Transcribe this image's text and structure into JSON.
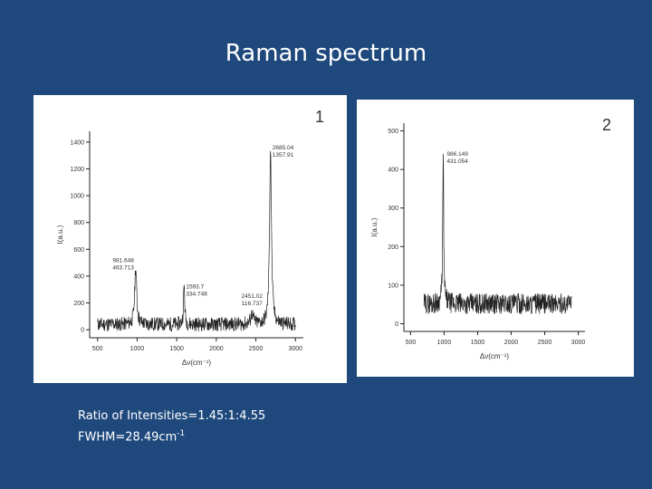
{
  "slide": {
    "title": "Raman spectrum",
    "ratio_text": "Ratio of  Intensities=1.45:1:4.55",
    "fwhm_text": "FWHM=28.49cm",
    "fwhm_exp": "-1"
  },
  "chart_data": [
    {
      "type": "line",
      "panel_label": "1",
      "xlabel": "Δν(cm⁻¹)",
      "ylabel": "I(a.u.)",
      "xlim": [
        400,
        3100
      ],
      "ylim": [
        -60,
        1480
      ],
      "xticks": [
        500,
        1000,
        1500,
        2000,
        2500,
        3000
      ],
      "yticks": [
        0,
        200,
        400,
        600,
        800,
        1000,
        1200,
        1400
      ],
      "baseline": 40,
      "x_start": 500,
      "x_end": 3000,
      "peaks": [
        {
          "x": 981.648,
          "y": 463.713,
          "fwhm": 30
        },
        {
          "x": 1593.7,
          "y": 334.748,
          "fwhm": 18
        },
        {
          "x": 2451.02,
          "y": 116.737,
          "fwhm": 40
        },
        {
          "x": 2685.04,
          "y": 1357.91,
          "fwhm": 28
        }
      ],
      "annotations": [
        {
          "lines": [
            "981.648",
            "463.713"
          ],
          "x": 981.648,
          "y": 463.713,
          "anchor": "end",
          "dx": -2,
          "dy": -6
        },
        {
          "lines": [
            "1593.7",
            "334.748"
          ],
          "x": 1593.7,
          "y": 334.748,
          "anchor": "start",
          "dx": 2,
          "dy": 4
        },
        {
          "lines": [
            "2451.02",
            "116.737"
          ],
          "x": 2451.02,
          "y": 116.737,
          "anchor": "middle",
          "dx": 0,
          "dy": -18
        },
        {
          "lines": [
            "2685.04",
            "1357.91"
          ],
          "x": 2685.04,
          "y": 1357.91,
          "anchor": "start",
          "dx": 2,
          "dy": 2
        }
      ],
      "grid": false
    },
    {
      "type": "line",
      "panel_label": "2",
      "xlabel": "Δν(cm⁻¹)",
      "ylabel": "I(a.u.)",
      "xlim": [
        400,
        3100
      ],
      "ylim": [
        -20,
        520
      ],
      "xticks": [
        500,
        1000,
        1500,
        2000,
        2500,
        3000
      ],
      "yticks": [
        0,
        100,
        200,
        300,
        400,
        500
      ],
      "baseline": 52,
      "x_start": 700,
      "x_end": 2900,
      "peaks": [
        {
          "x": 986.149,
          "y": 431.054,
          "fwhm": 18
        }
      ],
      "annotations": [
        {
          "lines": [
            "986.149",
            "431.054"
          ],
          "x": 986.149,
          "y": 431.054,
          "anchor": "start",
          "dx": 4,
          "dy": -2
        }
      ],
      "grid": false
    }
  ]
}
